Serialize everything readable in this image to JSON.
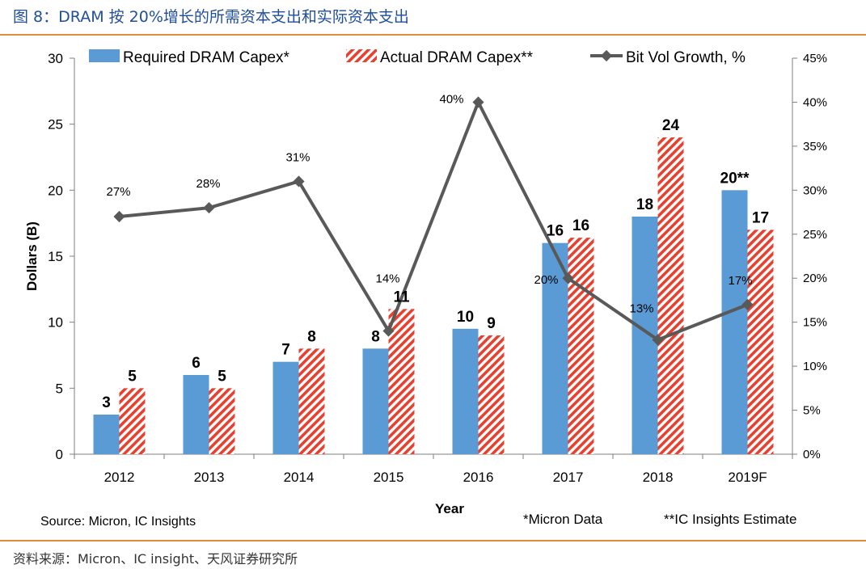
{
  "figure": {
    "title": "图 8：DRAM 按 20%增长的所需资本支出和实际资本支出",
    "source": "资料来源：Micron、IC insight、天风证券研究所"
  },
  "colors": {
    "required": "#5b9bd5",
    "actual_stripe": "#e8402e",
    "line": "#595959",
    "rule": "#e48b3c",
    "title": "#1f4e9c"
  },
  "chart_data": {
    "type": "bar",
    "categories": [
      "2012",
      "2013",
      "2014",
      "2015",
      "2016",
      "2017",
      "2018",
      "2019F"
    ],
    "series": [
      {
        "name": "Required DRAM Capex*",
        "type": "bar",
        "axis": "left",
        "values": [
          3,
          6,
          7,
          8,
          9.5,
          16,
          18,
          20
        ],
        "labels": [
          "3",
          "6",
          "7",
          "8",
          "10",
          "16",
          "18",
          "20**"
        ]
      },
      {
        "name": "Actual DRAM Capex**",
        "type": "bar",
        "axis": "left",
        "pattern": "diagonal-stripes",
        "values": [
          5,
          5,
          8,
          11,
          9,
          16.4,
          24,
          17
        ],
        "labels": [
          "5",
          "5",
          "8",
          "11",
          "9",
          "16",
          "24",
          "17"
        ]
      },
      {
        "name": "Bit Vol Growth, %",
        "type": "line",
        "axis": "right",
        "values": [
          27,
          28,
          31,
          14,
          40,
          20,
          13,
          17
        ],
        "labels": [
          "27%",
          "28%",
          "31%",
          "14%",
          "40%",
          "20%",
          "13%",
          "17%"
        ]
      }
    ],
    "xlabel": "Year",
    "ylabel": "Dollars (B)",
    "ylim": [
      0,
      30
    ],
    "yticks": [
      "0",
      "5",
      "10",
      "15",
      "20",
      "25",
      "30"
    ],
    "y2lim": [
      0,
      45
    ],
    "y2ticks": [
      "0%",
      "5%",
      "10%",
      "15%",
      "20%",
      "25%",
      "30%",
      "35%",
      "40%",
      "45%"
    ],
    "legend_position": "top",
    "notes": [
      "Source: Micron, IC Insights",
      "*Micron Data",
      "**IC Insights Estimate"
    ]
  }
}
